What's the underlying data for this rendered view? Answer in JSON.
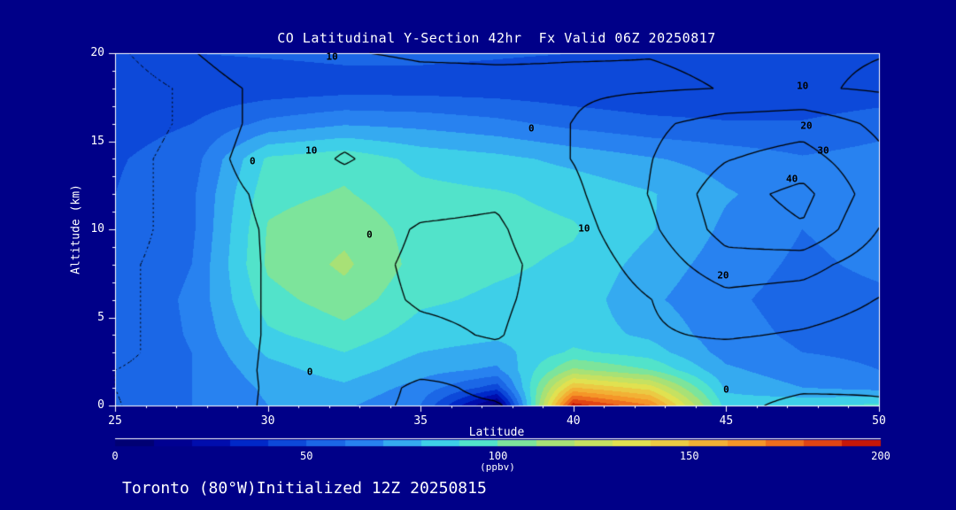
{
  "title": "CO Latitudinal Y-Section 42hr  Fx Valid 06Z 20250817",
  "caption": "Toronto (80°W)Initialized 12Z 20250815",
  "axes": {
    "x_label": "Latitude",
    "y_label": "Altitude (km)",
    "x_ticks": [
      25,
      30,
      35,
      40,
      45,
      50
    ],
    "y_ticks": [
      0,
      5,
      10,
      15,
      20
    ],
    "x_range": [
      25,
      50
    ],
    "y_range": [
      0,
      20
    ]
  },
  "colorbar": {
    "ticks": [
      0,
      50,
      100,
      150,
      200
    ],
    "units": "(ppbv)",
    "range": [
      0,
      200
    ]
  },
  "colors": {
    "background": "#000088",
    "frame": "#ffffff",
    "text": "#ffffff",
    "contour": "#000000"
  },
  "chart_data": {
    "type": "heatmap",
    "title": "CO Latitudinal Y-Section 42hr  Fx Valid 06Z 20250817",
    "xlabel": "Latitude",
    "ylabel": "Altitude (km)",
    "xlim": [
      25,
      50
    ],
    "ylim": [
      0,
      20
    ],
    "fill_units": "ppbv",
    "fill_range": [
      0,
      200
    ],
    "x": [
      25,
      27.5,
      30,
      32.5,
      35,
      37.5,
      40,
      42.5,
      45,
      47.5,
      50
    ],
    "y": [
      0,
      1,
      2,
      3,
      4,
      6,
      8,
      10,
      12,
      14,
      16,
      18,
      20
    ],
    "fill_values_ppbv": [
      [
        52,
        60,
        70,
        72,
        60,
        5,
        195,
        170,
        85,
        88,
        92
      ],
      [
        52,
        60,
        72,
        78,
        66,
        45,
        150,
        135,
        78,
        70,
        66
      ],
      [
        52,
        60,
        76,
        85,
        74,
        68,
        112,
        100,
        72,
        64,
        60
      ],
      [
        52,
        60,
        82,
        90,
        80,
        76,
        92,
        85,
        66,
        60,
        58
      ],
      [
        52,
        61,
        88,
        96,
        85,
        82,
        85,
        78,
        64,
        58,
        57
      ],
      [
        51,
        62,
        96,
        106,
        92,
        88,
        86,
        72,
        62,
        56,
        58
      ],
      [
        50,
        60,
        102,
        112,
        96,
        92,
        88,
        76,
        65,
        58,
        62
      ],
      [
        50,
        58,
        101,
        107,
        96,
        94,
        91,
        81,
        68,
        60,
        64
      ],
      [
        50,
        58,
        97,
        101,
        93,
        91,
        87,
        81,
        71,
        65,
        68
      ],
      [
        49,
        55,
        92,
        97,
        87,
        83,
        77,
        71,
        66,
        61,
        64
      ],
      [
        46,
        50,
        63,
        69,
        67,
        63,
        57,
        53,
        51,
        51,
        56
      ],
      [
        41,
        42,
        44,
        46,
        46,
        45,
        43,
        41,
        41,
        41,
        43
      ],
      [
        50,
        50,
        51,
        52,
        52,
        51,
        50,
        49,
        48,
        48,
        50
      ]
    ],
    "contour_overlay": {
      "levels_solid": [
        0,
        10,
        20,
        30,
        40
      ],
      "levels_dotted": [
        -5
      ],
      "values": [
        [
          -5.2,
          -3,
          0.5,
          2,
          -1,
          -0.3,
          4,
          6,
          2,
          -2,
          -0.5
        ],
        [
          -5,
          -3,
          0.4,
          3,
          -1,
          1,
          5,
          7,
          3,
          1,
          0.5
        ],
        [
          -5,
          -3,
          0.5,
          3,
          1,
          1,
          5,
          8,
          5,
          4,
          2
        ],
        [
          -6,
          -3,
          0.4,
          3,
          2,
          1,
          5,
          9,
          7,
          6,
          4
        ],
        [
          -6,
          -3,
          0.3,
          3,
          1,
          -0.4,
          4,
          9,
          11,
          9,
          6
        ],
        [
          -6,
          -3,
          0.3,
          2,
          -0.5,
          -1,
          3,
          9.8,
          17,
          15,
          9.7
        ],
        [
          -6,
          -3,
          0.3,
          2,
          -1,
          -2,
          4,
          14,
          26,
          24,
          14
        ],
        [
          -7,
          -3,
          0.4,
          3,
          -0.5,
          -1,
          6,
          18,
          34,
          39,
          19.8
        ],
        [
          -7,
          -3,
          1,
          5,
          2,
          1,
          8,
          20.4,
          36,
          43,
          24
        ],
        [
          -7,
          -3,
          3,
          11,
          4,
          3,
          10.3,
          19.6,
          29.5,
          34,
          22
        ],
        [
          -8,
          -4,
          2,
          6,
          4,
          5,
          10.2,
          18,
          24,
          26,
          18
        ],
        [
          -8,
          -4,
          2,
          5,
          7,
          8,
          8.5,
          9,
          10.2,
          11,
          9
        ],
        [
          -6,
          -0.5,
          6,
          9.5,
          11,
          11,
          10.5,
          10.2,
          11,
          11,
          10.2
        ]
      ]
    },
    "colormap_stops": [
      {
        "v": 0,
        "rgb": [
          0,
          0,
          100
        ]
      },
      {
        "v": 20,
        "rgb": [
          0,
          0,
          160
        ]
      },
      {
        "v": 35,
        "rgb": [
          0,
          40,
          200
        ]
      },
      {
        "v": 50,
        "rgb": [
          20,
          90,
          225
        ]
      },
      {
        "v": 65,
        "rgb": [
          40,
          130,
          240
        ]
      },
      {
        "v": 80,
        "rgb": [
          60,
          190,
          240
        ]
      },
      {
        "v": 90,
        "rgb": [
          64,
          224,
          224
        ]
      },
      {
        "v": 100,
        "rgb": [
          100,
          230,
          180
        ]
      },
      {
        "v": 110,
        "rgb": [
          150,
          225,
          130
        ]
      },
      {
        "v": 120,
        "rgb": [
          185,
          225,
          105
        ]
      },
      {
        "v": 135,
        "rgb": [
          225,
          225,
          80
        ]
      },
      {
        "v": 150,
        "rgb": [
          240,
          190,
          60
        ]
      },
      {
        "v": 165,
        "rgb": [
          245,
          150,
          40
        ]
      },
      {
        "v": 180,
        "rgb": [
          235,
          90,
          25
        ]
      },
      {
        "v": 190,
        "rgb": [
          215,
          45,
          15
        ]
      },
      {
        "v": 200,
        "rgb": [
          180,
          0,
          0
        ]
      }
    ],
    "annotations": [
      {
        "text": "10",
        "fx": 0.284,
        "fy": 0.01
      },
      {
        "text": "10",
        "fx": 0.9,
        "fy": 0.093
      },
      {
        "text": "20",
        "fx": 0.905,
        "fy": 0.206
      },
      {
        "text": "30",
        "fx": 0.927,
        "fy": 0.276
      },
      {
        "text": "40",
        "fx": 0.886,
        "fy": 0.357
      },
      {
        "text": "0",
        "fx": 0.18,
        "fy": 0.307
      },
      {
        "text": "10",
        "fx": 0.257,
        "fy": 0.276
      },
      {
        "text": "0",
        "fx": 0.333,
        "fy": 0.515
      },
      {
        "text": "10",
        "fx": 0.614,
        "fy": 0.497
      },
      {
        "text": "0",
        "fx": 0.545,
        "fy": 0.213
      },
      {
        "text": "0",
        "fx": 0.255,
        "fy": 0.905
      },
      {
        "text": "20",
        "fx": 0.796,
        "fy": 0.63
      },
      {
        "text": "0",
        "fx": 0.8,
        "fy": 0.955
      }
    ]
  }
}
